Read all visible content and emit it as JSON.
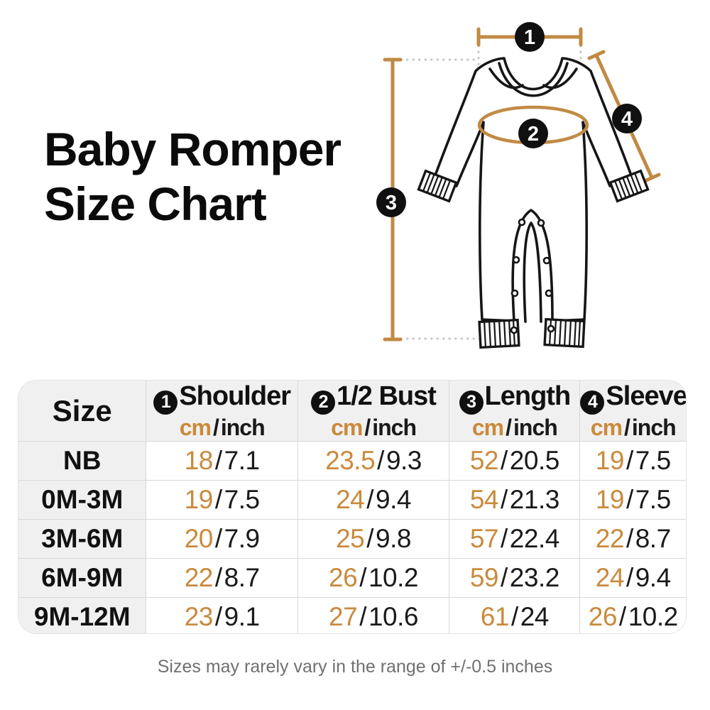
{
  "title": {
    "line1": "Baby Romper",
    "line2": "Size Chart"
  },
  "diagram": {
    "markers": [
      "1",
      "2",
      "3",
      "4"
    ]
  },
  "table": {
    "size_header": "Size",
    "unit_cm": "cm",
    "unit_sep": "/",
    "unit_inch": "inch",
    "columns": [
      {
        "num": "1",
        "label": "Shoulder"
      },
      {
        "num": "2",
        "label": "1/2 Bust"
      },
      {
        "num": "3",
        "label": "Length"
      },
      {
        "num": "4",
        "label": "Sleeve"
      }
    ]
  },
  "chart_data": {
    "type": "table",
    "title": "Baby Romper Size Chart",
    "columns": [
      "Size",
      "Shoulder cm",
      "Shoulder inch",
      "1/2 Bust cm",
      "1/2 Bust inch",
      "Length cm",
      "Length inch",
      "Sleeve cm",
      "Sleeve inch"
    ],
    "rows": [
      [
        "NB",
        "18",
        "7.1",
        "23.5",
        "9.3",
        "52",
        "20.5",
        "19",
        "7.5"
      ],
      [
        "0M-3M",
        "19",
        "7.5",
        "24",
        "9.4",
        "54",
        "21.3",
        "19",
        "7.5"
      ],
      [
        "3M-6M",
        "20",
        "7.9",
        "25",
        "9.8",
        "57",
        "22.4",
        "22",
        "8.7"
      ],
      [
        "6M-9M",
        "22",
        "8.7",
        "26",
        "10.2",
        "59",
        "23.2",
        "24",
        "9.4"
      ],
      [
        "9M-12M",
        "23",
        "9.1",
        "27",
        "10.6",
        "61",
        "24",
        "26",
        "10.2"
      ]
    ]
  },
  "footer": {
    "note": "Sizes may rarely vary in the range of +/-0.5 inches"
  },
  "colors": {
    "accent_text": "#ca8a3c",
    "measure_line": "#c18a44",
    "marker_bg": "#101010",
    "header_bg": "#f0f0f1",
    "grid_border": "#d9d9d9",
    "note_gray": "#707070"
  }
}
